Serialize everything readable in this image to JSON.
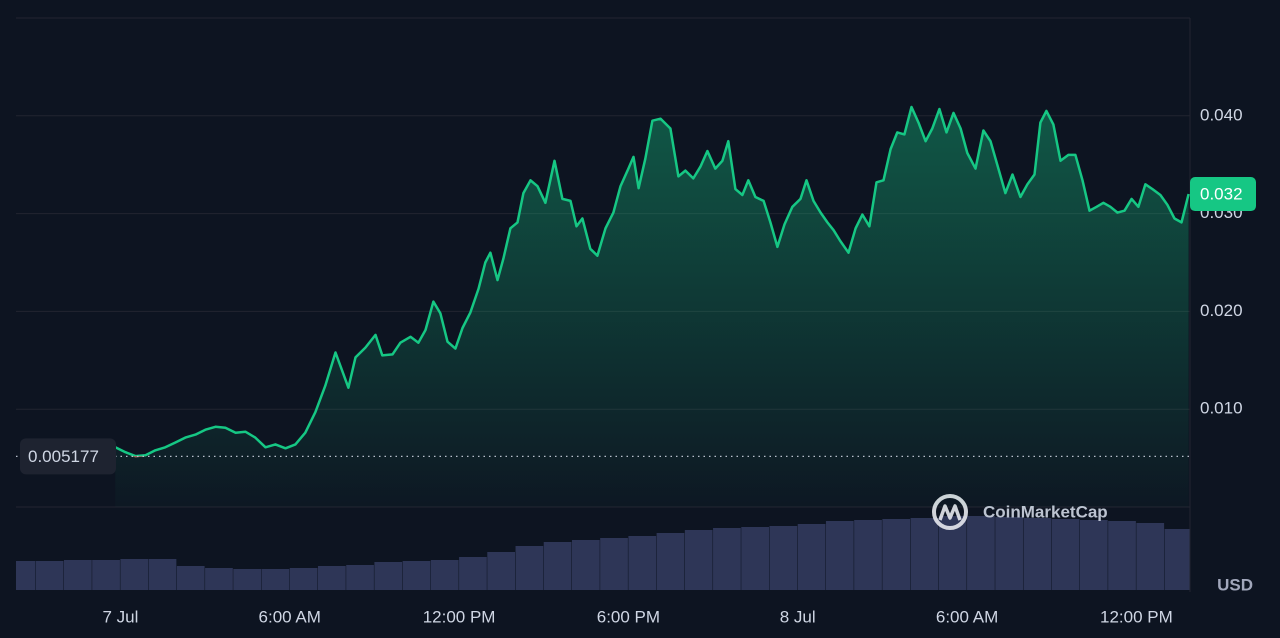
{
  "chart_data": {
    "type": "line",
    "x": [
      -0.18,
      0.18,
      0.53,
      0.89,
      1.24,
      1.59,
      1.95,
      2.3,
      2.66,
      3.01,
      3.37,
      3.72,
      4.08,
      4.43,
      4.78,
      5.14,
      5.49,
      5.85,
      6.2,
      6.55,
      6.91,
      7.26,
      7.62,
      8.08,
      8.33,
      8.68,
      9.04,
      9.28,
      9.64,
      9.92,
      10.28,
      10.56,
      10.81,
      11.09,
      11.34,
      11.59,
      11.87,
      12.12,
      12.4,
      12.69,
      12.93,
      13.11,
      13.36,
      13.57,
      13.82,
      14.07,
      14.28,
      14.53,
      14.78,
      15.06,
      15.38,
      15.66,
      15.95,
      16.16,
      16.37,
      16.65,
      16.9,
      17.19,
      17.47,
      17.72,
      18.0,
      18.18,
      18.36,
      18.6,
      18.85,
      19.14,
      19.49,
      19.77,
      20.02,
      20.3,
      20.55,
      20.8,
      21.08,
      21.33,
      21.54,
      21.79,
      22.04,
      22.25,
      22.5,
      22.79,
      23.03,
      23.28,
      23.53,
      23.81,
      24.1,
      24.31,
      24.56,
      24.81,
      25.05,
      25.27,
      25.51,
      25.8,
      26.05,
      26.29,
      26.54,
      26.79,
      27.04,
      27.29,
      27.53,
      27.78,
      28.03,
      28.28,
      28.53,
      28.77,
      29.02,
      29.27,
      29.52,
      29.77,
      30.01,
      30.3,
      30.58,
      30.83,
      31.11,
      31.36,
      31.61,
      31.89,
      32.14,
      32.39,
      32.6,
      32.81,
      33.06,
      33.31,
      33.59,
      33.84,
      34.09,
      34.34,
      34.59,
      34.83,
      35.08,
      35.33,
      35.58,
      35.83,
      36.07,
      36.32,
      36.57,
      36.85,
      37.1,
      37.35,
      37.6,
      37.85
    ],
    "values": [
      0.0061,
      0.0056,
      0.0052,
      0.0053,
      0.0058,
      0.0061,
      0.0066,
      0.0071,
      0.0074,
      0.0079,
      0.0082,
      0.0081,
      0.0076,
      0.0077,
      0.0071,
      0.0061,
      0.0064,
      0.006,
      0.0064,
      0.0076,
      0.0097,
      0.0124,
      0.0158,
      0.0122,
      0.0153,
      0.0163,
      0.0176,
      0.0155,
      0.0156,
      0.0168,
      0.0174,
      0.0168,
      0.0181,
      0.021,
      0.0198,
      0.0169,
      0.0162,
      0.0183,
      0.0199,
      0.0223,
      0.025,
      0.026,
      0.0232,
      0.0254,
      0.0285,
      0.0291,
      0.0321,
      0.0334,
      0.0328,
      0.0311,
      0.0354,
      0.0315,
      0.0313,
      0.0287,
      0.0295,
      0.0264,
      0.0257,
      0.0285,
      0.0301,
      0.0328,
      0.0346,
      0.0358,
      0.0326,
      0.0356,
      0.0395,
      0.0397,
      0.0387,
      0.0338,
      0.0344,
      0.0336,
      0.0348,
      0.0364,
      0.0346,
      0.0354,
      0.0374,
      0.0325,
      0.0319,
      0.0334,
      0.0317,
      0.0313,
      0.0291,
      0.0266,
      0.0289,
      0.0307,
      0.0315,
      0.0334,
      0.0313,
      0.0301,
      0.0291,
      0.0283,
      0.0272,
      0.026,
      0.0285,
      0.0299,
      0.0287,
      0.0332,
      0.0334,
      0.0366,
      0.0383,
      0.0381,
      0.0409,
      0.0393,
      0.0374,
      0.0387,
      0.0407,
      0.0383,
      0.0403,
      0.0387,
      0.0362,
      0.0346,
      0.0385,
      0.0374,
      0.0346,
      0.0321,
      0.034,
      0.0317,
      0.033,
      0.034,
      0.0393,
      0.0405,
      0.0391,
      0.0354,
      0.036,
      0.036,
      0.0334,
      0.0303,
      0.0307,
      0.0311,
      0.0307,
      0.0301,
      0.0303,
      0.0315,
      0.0307,
      0.033,
      0.0325,
      0.0319,
      0.0309,
      0.0295,
      0.0291,
      0.032
    ],
    "color": "#16c784",
    "down_color": "#ea3943",
    "reference_price": 0.005177,
    "current_price": 0.032,
    "xlim": [
      -3.7,
      37.9
    ],
    "ylim": [
      0,
      0.05
    ],
    "xticks": [
      {
        "value": 0,
        "label": "7 Jul"
      },
      {
        "value": 6,
        "label": "6:00 AM"
      },
      {
        "value": 12,
        "label": "12:00 PM"
      },
      {
        "value": 18,
        "label": "6:00 PM"
      },
      {
        "value": 24,
        "label": "8 Jul"
      },
      {
        "value": 30,
        "label": "6:00 AM"
      },
      {
        "value": 36,
        "label": "12:00 PM"
      }
    ],
    "yticks": [
      {
        "value": 0.01,
        "label": "0.010"
      },
      {
        "value": 0.02,
        "label": "0.020"
      },
      {
        "value": 0.03,
        "label": "0.030"
      },
      {
        "value": 0.04,
        "label": "0.040"
      }
    ],
    "grid": true,
    "currency": "USD",
    "watermark": "CoinMarketCap",
    "volume": {
      "x": [
        -3.5,
        -2.5,
        -1.5,
        -0.5,
        0.5,
        1.5,
        2.5,
        3.5,
        4.5,
        5.5,
        6.5,
        7.5,
        8.5,
        9.5,
        10.5,
        11.5,
        12.5,
        13.5,
        14.5,
        15.5,
        16.5,
        17.5,
        18.5,
        19.5,
        20.5,
        21.5,
        22.5,
        23.5,
        24.5,
        25.5,
        26.5,
        27.5,
        28.5,
        29.5,
        30.5,
        31.5,
        32.5,
        33.5,
        34.5,
        35.5,
        36.5,
        37.5
      ],
      "values": [
        29,
        29,
        30,
        30,
        31,
        31,
        24,
        22,
        21,
        21,
        22,
        24,
        25,
        28,
        29,
        30,
        33,
        38,
        44,
        48,
        50,
        52,
        54,
        57,
        60,
        62,
        63,
        64,
        66,
        69,
        70,
        71,
        72,
        74,
        74,
        73,
        72,
        71,
        70,
        69,
        67,
        61
      ],
      "color": "#2e3657",
      "ylim": [
        0,
        83
      ]
    }
  }
}
